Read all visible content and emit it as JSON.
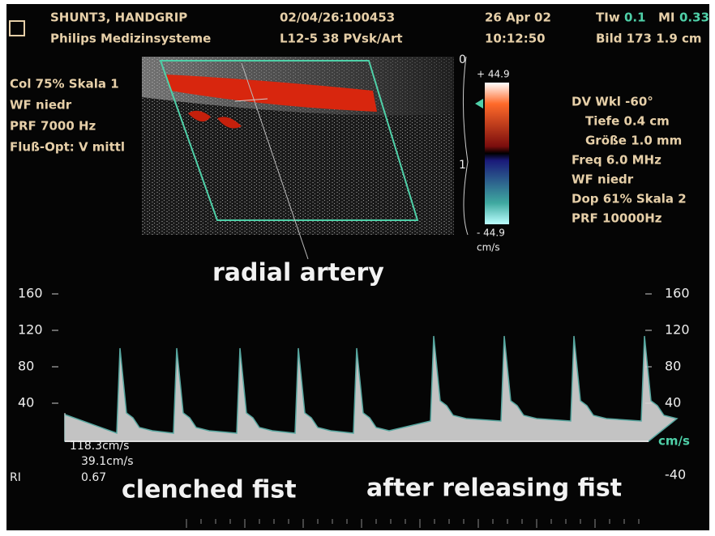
{
  "header": {
    "exam": "SHUNT3, HANDGRIP",
    "vendor": "Philips Medizinsysteme",
    "id": "02/04/26:100453",
    "probe": "L12-5 38 PVsk/Art",
    "date": "26 Apr 02",
    "time": "10:12:50",
    "tiw_label": "TIw",
    "tiw_value": "0.1",
    "mi_label": "MI",
    "mi_value": "0.33",
    "frame": "Bild 173  1.9 cm"
  },
  "color_settings": [
    "Col 75%  Skala 1",
    "WF niedr",
    "PRF 7000  Hz",
    "Fluß-Opt: V mittl"
  ],
  "doppler_settings": [
    "DV Wkl -60°",
    "Tiefe 0.4  cm",
    "Größe 1.0  mm",
    "Freq 6.0  MHz",
    "WF niedr",
    "Dop 61%  Skala 2",
    "PRF 10000Hz"
  ],
  "color_bar": {
    "max": "+ 44.9",
    "min": "- 44.9",
    "unit": "cm/s"
  },
  "depth_scale": [
    "0",
    "1"
  ],
  "annotation": "radial artery",
  "spectrum": {
    "left_ticks": [
      "160",
      "120",
      "80",
      "40"
    ],
    "right_ticks": [
      "160",
      "120",
      "80",
      "40"
    ],
    "unit": "cm/s",
    "negative_tick": "-40"
  },
  "measurements": {
    "peak": "118.3cm/s",
    "end_diastolic": "39.1cm/s",
    "ri_label": "RI",
    "ri_value": "0.67"
  },
  "captions": [
    "clenched fist",
    "after releasing fist"
  ]
}
